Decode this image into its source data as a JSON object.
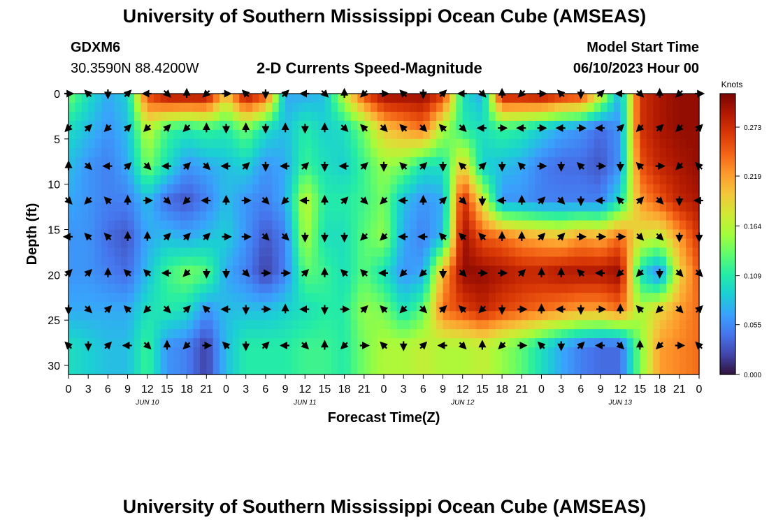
{
  "header": {
    "title": "University of Southern Mississippi Ocean Cube (AMSEAS)",
    "station": "GDXM6",
    "coords": "30.3590N  88.4200W",
    "subtitle": "2-D Currents Speed-Magnitude",
    "model_label": "Model Start Time",
    "model_start": "06/10/2023 Hour 00"
  },
  "footer": {
    "title": "University of Southern Mississippi Ocean Cube (AMSEAS)"
  },
  "colors": {
    "ramp": [
      "#30123b",
      "#4145ab",
      "#4675ed",
      "#39a2fc",
      "#1bcfd4",
      "#24eca6",
      "#61fc6c",
      "#a4fc3b",
      "#d1e834",
      "#f3c63a",
      "#fe9b2d",
      "#f36315",
      "#d93806",
      "#b11901",
      "#7a0403"
    ]
  },
  "chart_data": {
    "type": "heatmap",
    "title": "2-D Currents Speed-Magnitude",
    "xlabel": "Forecast Time(Z)",
    "ylabel": "Depth (ft)",
    "colorbar_label": "Knots",
    "colorbar_ticks": [
      "0.273",
      "0.219",
      "0.164",
      "0.109",
      "0.055",
      "0.000"
    ],
    "colorbar_values": [
      0.273,
      0.219,
      0.164,
      0.109,
      0.055,
      0.0
    ],
    "colorbar_range": [
      0,
      0.31
    ],
    "x_range": [
      0,
      96
    ],
    "x_tick_hours": [
      0,
      3,
      6,
      9,
      12,
      15,
      18,
      21,
      24,
      27,
      30,
      33,
      36,
      39,
      42,
      45,
      48,
      51,
      54,
      57,
      60,
      63,
      66,
      69,
      72,
      75,
      78,
      81,
      84,
      87,
      90,
      93,
      96
    ],
    "x_tick_labels": [
      "0",
      "3",
      "6",
      "9",
      "12",
      "15",
      "18",
      "21",
      "0",
      "3",
      "6",
      "9",
      "12",
      "15",
      "18",
      "21",
      "0",
      "3",
      "6",
      "9",
      "12",
      "15",
      "18",
      "21",
      "0",
      "3",
      "6",
      "9",
      "12",
      "15",
      "18",
      "21",
      "0"
    ],
    "date_labels": [
      {
        "label": "JUN 10",
        "hour": 12
      },
      {
        "label": "JUN 11",
        "hour": 36
      },
      {
        "label": "JUN 12",
        "hour": 60
      },
      {
        "label": "JUN 13",
        "hour": 84
      }
    ],
    "y_range": [
      0,
      31
    ],
    "y_ticks": [
      0,
      5,
      10,
      15,
      20,
      25,
      30
    ],
    "y_tick_labels": [
      "0",
      "5",
      "10",
      "15",
      "20",
      "25",
      "30"
    ],
    "arrow_depths_ft": [
      0,
      3.8,
      8,
      11.8,
      15.8,
      19.8,
      23.8,
      27.8
    ],
    "arrow_hours": [
      0,
      3,
      6,
      9,
      12,
      15,
      18,
      21,
      24,
      27,
      30,
      33,
      36,
      39,
      42,
      45,
      48,
      51,
      54,
      57,
      60,
      63,
      66,
      69,
      72,
      75,
      78,
      81,
      84,
      87,
      90,
      93,
      96
    ],
    "speed_field_knots": [
      {
        "h": 0,
        "speeds": [
          0.14,
          0.1,
          0.08,
          0.07,
          0.06,
          0.06,
          0.07,
          0.1
        ]
      },
      {
        "h": 3,
        "speeds": [
          0.1,
          0.08,
          0.06,
          0.06,
          0.06,
          0.06,
          0.07,
          0.09
        ]
      },
      {
        "h": 6,
        "speeds": [
          0.07,
          0.06,
          0.05,
          0.05,
          0.04,
          0.05,
          0.07,
          0.08
        ]
      },
      {
        "h": 9,
        "speeds": [
          0.09,
          0.08,
          0.07,
          0.05,
          0.03,
          0.04,
          0.07,
          0.08
        ]
      },
      {
        "h": 12,
        "speeds": [
          0.26,
          0.17,
          0.14,
          0.08,
          0.07,
          0.08,
          0.1,
          0.12
        ]
      },
      {
        "h": 15,
        "speeds": [
          0.3,
          0.12,
          0.1,
          0.04,
          0.08,
          0.12,
          0.11,
          0.06
        ]
      },
      {
        "h": 18,
        "speeds": [
          0.3,
          0.11,
          0.06,
          0.03,
          0.07,
          0.14,
          0.1,
          0.05
        ]
      },
      {
        "h": 21,
        "speeds": [
          0.3,
          0.12,
          0.07,
          0.05,
          0.08,
          0.13,
          0.06,
          0.02
        ]
      },
      {
        "h": 24,
        "speeds": [
          0.2,
          0.11,
          0.08,
          0.08,
          0.09,
          0.07,
          0.08,
          0.08
        ]
      },
      {
        "h": 27,
        "speeds": [
          0.3,
          0.14,
          0.09,
          0.06,
          0.06,
          0.05,
          0.08,
          0.11
        ]
      },
      {
        "h": 30,
        "speeds": [
          0.26,
          0.1,
          0.06,
          0.05,
          0.03,
          0.02,
          0.08,
          0.11
        ]
      },
      {
        "h": 33,
        "speeds": [
          0.07,
          0.08,
          0.07,
          0.07,
          0.05,
          0.05,
          0.09,
          0.11
        ]
      },
      {
        "h": 36,
        "speeds": [
          0.07,
          0.11,
          0.12,
          0.17,
          0.16,
          0.13,
          0.1,
          0.12
        ]
      },
      {
        "h": 39,
        "speeds": [
          0.08,
          0.09,
          0.1,
          0.11,
          0.1,
          0.12,
          0.11,
          0.12
        ]
      },
      {
        "h": 42,
        "speeds": [
          0.17,
          0.1,
          0.09,
          0.11,
          0.1,
          0.1,
          0.11,
          0.11
        ]
      },
      {
        "h": 45,
        "speeds": [
          0.26,
          0.14,
          0.12,
          0.12,
          0.13,
          0.13,
          0.15,
          0.14
        ]
      },
      {
        "h": 48,
        "speeds": [
          0.3,
          0.2,
          0.15,
          0.14,
          0.15,
          0.1,
          0.14,
          0.16
        ]
      },
      {
        "h": 51,
        "speeds": [
          0.3,
          0.22,
          0.14,
          0.08,
          0.07,
          0.06,
          0.1,
          0.16
        ]
      },
      {
        "h": 54,
        "speeds": [
          0.3,
          0.24,
          0.1,
          0.06,
          0.05,
          0.07,
          0.13,
          0.17
        ]
      },
      {
        "h": 57,
        "speeds": [
          0.27,
          0.16,
          0.1,
          0.07,
          0.08,
          0.21,
          0.24,
          0.16
        ]
      },
      {
        "h": 60,
        "speeds": [
          0.1,
          0.11,
          0.2,
          0.28,
          0.3,
          0.3,
          0.26,
          0.16
        ]
      },
      {
        "h": 63,
        "speeds": [
          0.07,
          0.1,
          0.09,
          0.18,
          0.25,
          0.3,
          0.28,
          0.17
        ]
      },
      {
        "h": 66,
        "speeds": [
          0.29,
          0.12,
          0.08,
          0.06,
          0.24,
          0.29,
          0.26,
          0.15
        ]
      },
      {
        "h": 69,
        "speeds": [
          0.29,
          0.11,
          0.07,
          0.06,
          0.22,
          0.28,
          0.25,
          0.13
        ]
      },
      {
        "h": 72,
        "speeds": [
          0.3,
          0.09,
          0.05,
          0.05,
          0.21,
          0.28,
          0.24,
          0.1
        ]
      },
      {
        "h": 75,
        "speeds": [
          0.28,
          0.07,
          0.04,
          0.05,
          0.2,
          0.29,
          0.23,
          0.07
        ]
      },
      {
        "h": 78,
        "speeds": [
          0.27,
          0.06,
          0.04,
          0.05,
          0.22,
          0.29,
          0.22,
          0.05
        ]
      },
      {
        "h": 81,
        "speeds": [
          0.18,
          0.04,
          0.03,
          0.05,
          0.21,
          0.29,
          0.22,
          0.04
        ]
      },
      {
        "h": 84,
        "speeds": [
          0.07,
          0.06,
          0.06,
          0.1,
          0.24,
          0.3,
          0.24,
          0.04
        ]
      },
      {
        "h": 87,
        "speeds": [
          0.27,
          0.27,
          0.25,
          0.22,
          0.18,
          0.1,
          0.16,
          0.14
        ]
      },
      {
        "h": 90,
        "speeds": [
          0.29,
          0.29,
          0.28,
          0.25,
          0.17,
          0.05,
          0.19,
          0.22
        ]
      },
      {
        "h": 93,
        "speeds": [
          0.3,
          0.3,
          0.29,
          0.28,
          0.22,
          0.19,
          0.22,
          0.23
        ]
      },
      {
        "h": 96,
        "speeds": [
          0.3,
          0.3,
          0.3,
          0.29,
          0.27,
          0.25,
          0.24,
          0.24
        ]
      }
    ]
  }
}
